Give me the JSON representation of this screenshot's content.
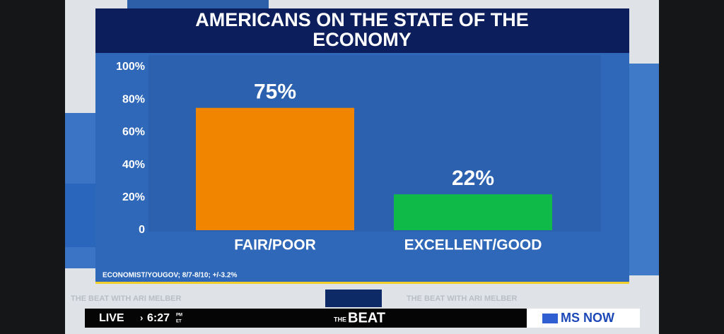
{
  "chart_data": {
    "type": "bar",
    "title": "AMERICANS ON THE STATE OF THE ECONOMY",
    "categories": [
      "FAIR/POOR",
      "EXCELLENT/GOOD"
    ],
    "values": [
      75,
      22
    ],
    "value_labels": [
      "75%",
      "22%"
    ],
    "colors": [
      "#f28500",
      "#0fba48"
    ],
    "ylim": [
      0,
      100
    ],
    "yticks": [
      0,
      {
        "value": 20,
        "label": "20%"
      },
      {
        "value": 40,
        "label": "40%"
      },
      {
        "value": 60,
        "label": "60%"
      },
      {
        "value": 80,
        "label": "80%"
      },
      {
        "value": 100,
        "label": "100%"
      }
    ],
    "source": "ECONOMIST/YOUGOV; 8/7-8/10; +/-3.2%"
  },
  "broadcast": {
    "live": "LIVE",
    "time": "6:27",
    "meridiem": "PM",
    "zone": "ET",
    "show_prefix": "THE",
    "show": "BEAT",
    "network": "MS NOW",
    "ticker": "THE BEAT WITH ARI MELBER"
  }
}
